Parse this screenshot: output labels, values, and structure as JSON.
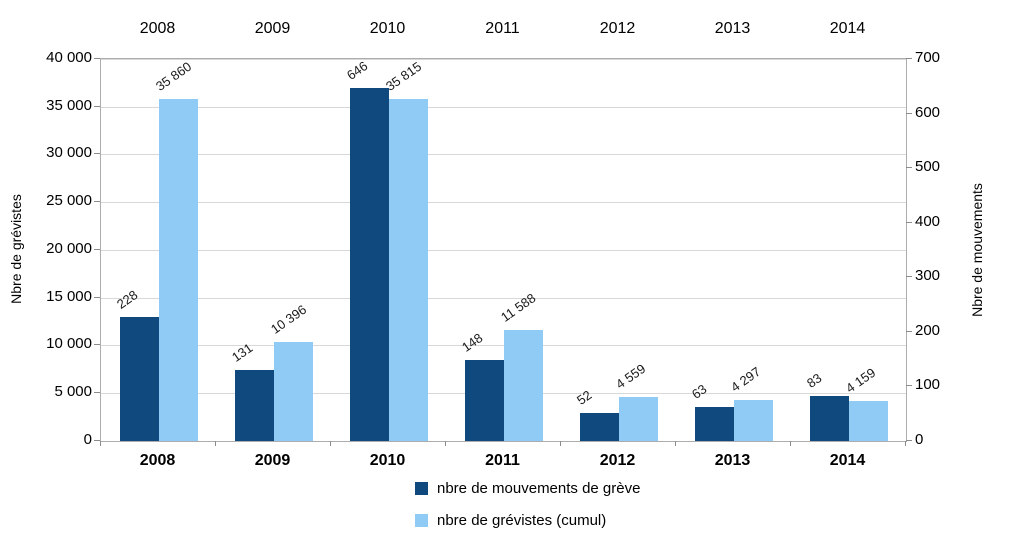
{
  "chart_data": {
    "type": "bar",
    "title": "",
    "categories": [
      "2008",
      "2009",
      "2010",
      "2011",
      "2012",
      "2013",
      "2014"
    ],
    "series": [
      {
        "name": "nbre de mouvements de grève",
        "axis": "right",
        "color": "#10497e",
        "values": [
          228,
          131,
          646,
          148,
          52,
          63,
          83
        ],
        "labels": [
          "228",
          "131",
          "646",
          "148",
          "52",
          "63",
          "83"
        ]
      },
      {
        "name": "nbre de grévistes (cumul)",
        "axis": "left",
        "color": "#8fcbf5",
        "values": [
          35860,
          10396,
          35815,
          11588,
          4559,
          4297,
          4159
        ],
        "labels": [
          "35 860",
          "10 396",
          "35 815",
          "11 588",
          "4 559",
          "4 297",
          "4 159"
        ]
      }
    ],
    "left_axis": {
      "title": "Nbre de grévistes",
      "min": 0,
      "max": 40000,
      "step": 5000,
      "tick_labels": [
        "0",
        "5 000",
        "10 000",
        "15 000",
        "20 000",
        "25 000",
        "30 000",
        "35 000",
        "40 000"
      ]
    },
    "right_axis": {
      "title": "Nbre de mouvements",
      "min": 0,
      "max": 700,
      "step": 100,
      "tick_labels": [
        "0",
        "100",
        "200",
        "300",
        "400",
        "500",
        "600",
        "700"
      ]
    },
    "x_axis_labels_top": [
      "2008",
      "2009",
      "2010",
      "2011",
      "2012",
      "2013",
      "2014"
    ],
    "x_axis_labels_bottom": [
      "2008",
      "2009",
      "2010",
      "2011",
      "2012",
      "2013",
      "2014"
    ],
    "grid": true,
    "legend_position": "bottom"
  }
}
